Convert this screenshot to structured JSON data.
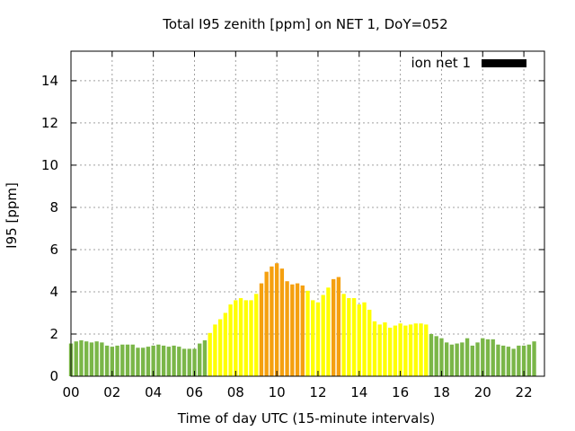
{
  "chart_data": {
    "type": "bar",
    "title": "Total I95 zenith [ppm] on NET 1, DoY=052",
    "xlabel": "Time of day UTC (15-minute intervals)",
    "ylabel": "I95 [ppm]",
    "xlim": [
      0,
      23
    ],
    "ylim": [
      0,
      15.4
    ],
    "yticks": [
      0,
      2,
      4,
      6,
      8,
      10,
      12,
      14
    ],
    "xticks": [
      0,
      2,
      4,
      6,
      8,
      10,
      12,
      14,
      16,
      18,
      20,
      22
    ],
    "xtick_labels": [
      "00",
      "02",
      "04",
      "06",
      "08",
      "10",
      "12",
      "14",
      "16",
      "18",
      "20",
      "22"
    ],
    "grid": true,
    "legend": {
      "label": "ion net 1",
      "position": "top-right",
      "color": "#000000"
    },
    "bar_width_hours": 0.19,
    "colors": {
      "low": "#7ab648",
      "mid": "#ffff00",
      "high": "#f5a00f"
    },
    "series": [
      {
        "name": "ion net 1",
        "x_start": 0,
        "step_hours": 0.25,
        "values": [
          1.55,
          1.65,
          1.7,
          1.65,
          1.6,
          1.65,
          1.6,
          1.45,
          1.4,
          1.45,
          1.5,
          1.5,
          1.5,
          1.35,
          1.35,
          1.4,
          1.45,
          1.5,
          1.45,
          1.4,
          1.45,
          1.4,
          1.3,
          1.3,
          1.3,
          1.55,
          1.7,
          2.05,
          2.45,
          2.7,
          3.0,
          3.4,
          3.6,
          3.7,
          3.6,
          3.6,
          3.9,
          4.4,
          4.95,
          5.2,
          5.35,
          5.1,
          4.5,
          4.35,
          4.4,
          4.3,
          4.05,
          3.6,
          3.5,
          3.85,
          4.2,
          4.6,
          4.7,
          3.9,
          3.7,
          3.7,
          3.4,
          3.5,
          3.15,
          2.6,
          2.45,
          2.55,
          2.3,
          2.4,
          2.5,
          2.4,
          2.45,
          2.5,
          2.5,
          2.45,
          2.0,
          1.9,
          1.8,
          1.6,
          1.5,
          1.55,
          1.6,
          1.8,
          1.45,
          1.6,
          1.8,
          1.75,
          1.75,
          1.5,
          1.45,
          1.4,
          1.3,
          1.45,
          1.45,
          1.5,
          1.65
        ],
        "levels": [
          "low",
          "low",
          "low",
          "low",
          "low",
          "low",
          "low",
          "low",
          "low",
          "low",
          "low",
          "low",
          "low",
          "low",
          "low",
          "low",
          "low",
          "low",
          "low",
          "low",
          "low",
          "low",
          "low",
          "low",
          "low",
          "low",
          "low",
          "mid",
          "mid",
          "mid",
          "mid",
          "mid",
          "mid",
          "mid",
          "mid",
          "mid",
          "mid",
          "high",
          "high",
          "high",
          "high",
          "high",
          "high",
          "high",
          "high",
          "high",
          "mid",
          "mid",
          "mid",
          "mid",
          "mid",
          "high",
          "high",
          "mid",
          "mid",
          "mid",
          "mid",
          "mid",
          "mid",
          "mid",
          "mid",
          "mid",
          "mid",
          "mid",
          "mid",
          "mid",
          "mid",
          "mid",
          "mid",
          "mid",
          "low",
          "low",
          "low",
          "low",
          "low",
          "low",
          "low",
          "low",
          "low",
          "low",
          "low",
          "low",
          "low",
          "low",
          "low",
          "low",
          "low",
          "low",
          "low",
          "low",
          "low"
        ]
      }
    ]
  }
}
